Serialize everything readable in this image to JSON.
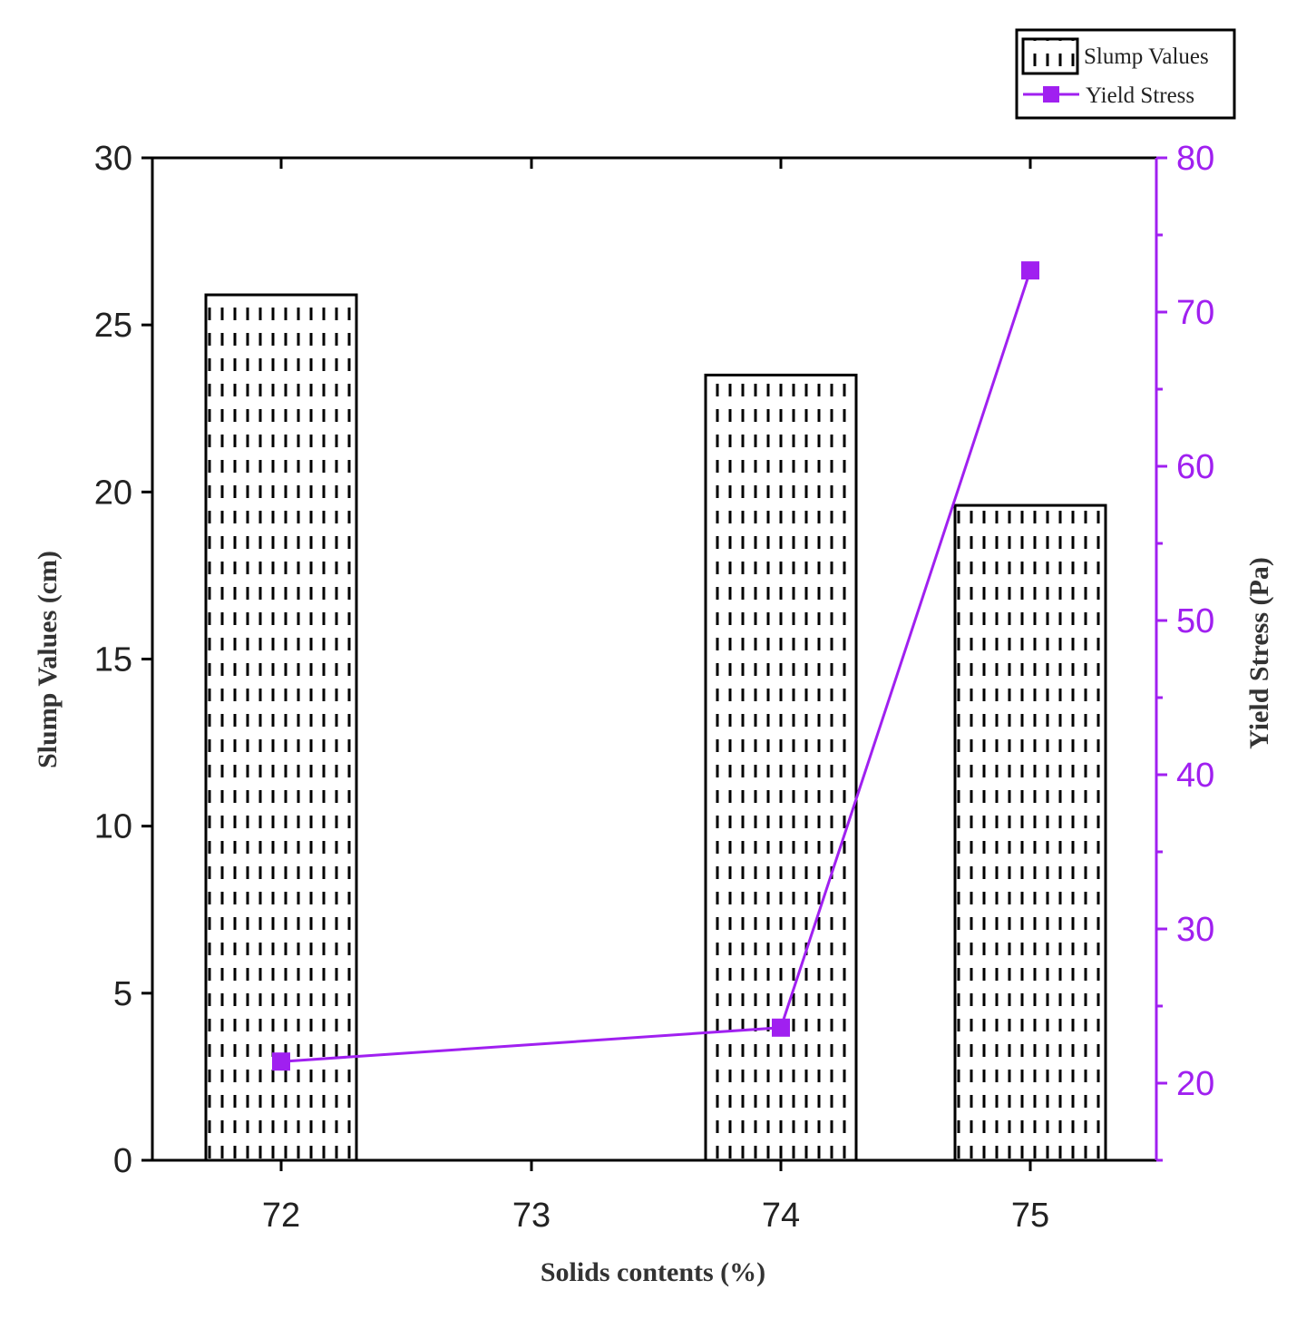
{
  "chart_data": {
    "type": "bar",
    "categories": [
      "72",
      "73",
      "74",
      "75"
    ],
    "x_ticks": [
      "72",
      "73",
      "74",
      "75"
    ],
    "xlabel": "Solids contents (%)",
    "ylabel": "Slump Values (cm)",
    "y2label": "Yield Stress (Pa)",
    "ylim": [
      0,
      30
    ],
    "y2lim": [
      15,
      80
    ],
    "y_ticks": [
      0,
      5,
      10,
      15,
      20,
      25,
      30
    ],
    "y2_ticks": [
      20,
      30,
      40,
      50,
      60,
      70,
      80
    ],
    "series": [
      {
        "name": "Slump Values",
        "type": "bar",
        "axis": "left",
        "x": [
          "72",
          "74",
          "75"
        ],
        "values": [
          25.9,
          23.5,
          19.6
        ],
        "pattern": "dashed-dot-hatch",
        "color": "#000000"
      },
      {
        "name": "Yield Stress",
        "type": "line",
        "axis": "right",
        "marker": "square",
        "x": [
          "72",
          "74",
          "75"
        ],
        "values": [
          21.4,
          23.6,
          72.7
        ],
        "color": "#a020f0"
      }
    ],
    "legend_position": "top-right",
    "grid": false
  }
}
